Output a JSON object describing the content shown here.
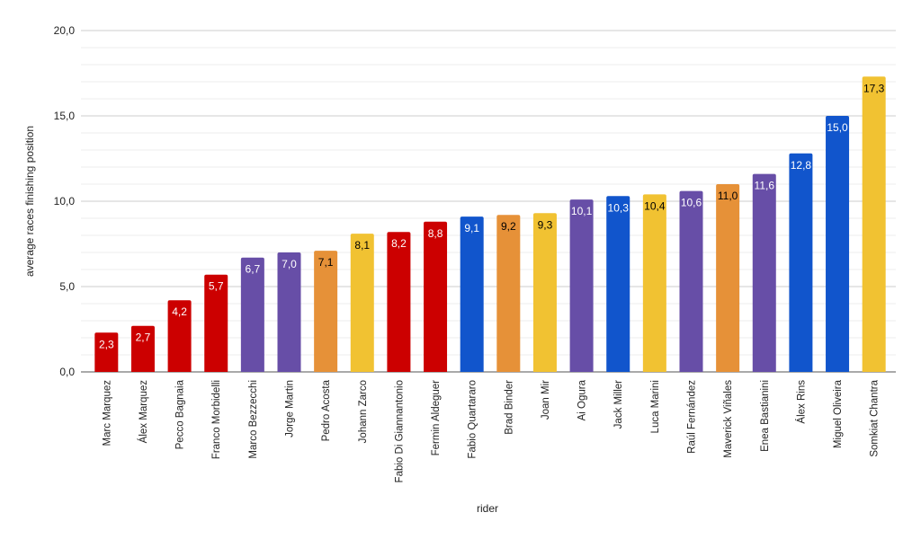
{
  "chart_data": {
    "type": "bar",
    "title": "",
    "xlabel": "rider",
    "ylabel": "average races finishing position",
    "ylim": [
      0,
      20
    ],
    "yticks": [
      "0,0",
      "5,0",
      "10,0",
      "15,0",
      "20,0"
    ],
    "grid": true,
    "legend": "none",
    "categories": [
      "Marc Marquez",
      "Álex Marquez",
      "Pecco Bagnaia",
      "Franco Morbidelli",
      "Marco Bezzecchi",
      "Jorge Martin",
      "Pedro Acosta",
      "Johann Zarco",
      "Fabio Di Giannantonio",
      "Fermin Aldeguer",
      "Fabio Quartararo",
      "Brad Binder",
      "Joan Mir",
      "Ai Ogura",
      "Jack Miller",
      "Luca Marini",
      "Raúl Fernández",
      "Maverick Viñales",
      "Enea Bastianini",
      "Álex Rins",
      "Miguel Oliveira",
      "Somkiat Chantra"
    ],
    "values": [
      2.3,
      2.7,
      4.2,
      5.7,
      6.7,
      7.0,
      7.1,
      8.1,
      8.2,
      8.8,
      9.1,
      9.2,
      9.3,
      10.1,
      10.3,
      10.4,
      10.6,
      11.0,
      11.6,
      12.8,
      15.0,
      17.3
    ],
    "labels": [
      "2,3",
      "2,7",
      "4,2",
      "5,7",
      "6,7",
      "7,0",
      "7,1",
      "8,1",
      "8,2",
      "8,8",
      "9,1",
      "9,2",
      "9,3",
      "10,1",
      "10,3",
      "10,4",
      "10,6",
      "11,0",
      "11,6",
      "12,8",
      "15,0",
      "17,3"
    ],
    "colors": [
      "#cc0000",
      "#cc0000",
      "#cc0000",
      "#cc0000",
      "#674ea7",
      "#674ea7",
      "#e69138",
      "#f1c232",
      "#cc0000",
      "#cc0000",
      "#1155cc",
      "#e69138",
      "#f1c232",
      "#674ea7",
      "#1155cc",
      "#f1c232",
      "#674ea7",
      "#e69138",
      "#674ea7",
      "#1155cc",
      "#1155cc",
      "#f1c232"
    ],
    "label_colors": [
      "#ffffff",
      "#ffffff",
      "#ffffff",
      "#ffffff",
      "#ffffff",
      "#ffffff",
      "#000000",
      "#000000",
      "#ffffff",
      "#ffffff",
      "#ffffff",
      "#000000",
      "#000000",
      "#ffffff",
      "#ffffff",
      "#000000",
      "#ffffff",
      "#000000",
      "#ffffff",
      "#ffffff",
      "#ffffff",
      "#000000"
    ]
  }
}
